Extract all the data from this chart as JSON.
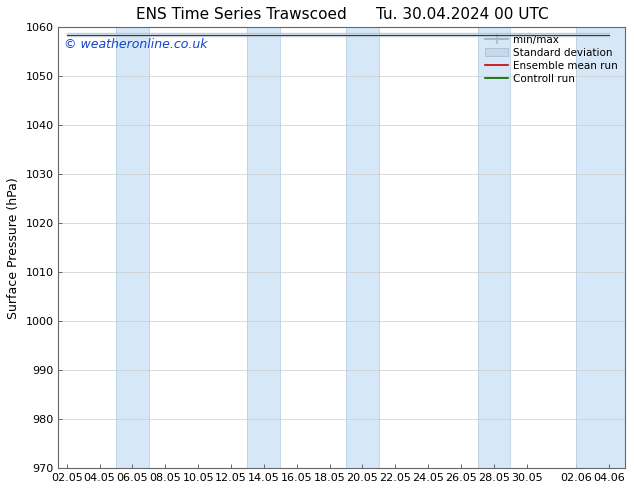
{
  "title_left": "ENS Time Series Trawscoed",
  "title_right": "Tu. 30.04.2024 00 UTC",
  "ylabel": "Surface Pressure (hPa)",
  "watermark": "© weatheronline.co.uk",
  "ylim": [
    970,
    1060
  ],
  "yticks": [
    970,
    980,
    990,
    1000,
    1010,
    1020,
    1030,
    1040,
    1050,
    1060
  ],
  "xtick_labels": [
    "02.05",
    "04.05",
    "06.05",
    "08.05",
    "10.05",
    "12.05",
    "14.05",
    "16.05",
    "18.05",
    "20.05",
    "22.05",
    "24.05",
    "26.05",
    "28.05",
    "30.05",
    "02.06",
    "04.06"
  ],
  "xtick_positions": [
    0,
    2,
    4,
    6,
    8,
    10,
    12,
    14,
    16,
    18,
    20,
    22,
    24,
    26,
    28,
    31,
    33
  ],
  "xlim": [
    -0.5,
    34
  ],
  "shaded_band_color": "#d6e8f7",
  "shaded_band_edge_color": "#b8d0e8",
  "background_color": "#ffffff",
  "plot_bg_color": "#ffffff",
  "shaded_ranges": [
    [
      3,
      5
    ],
    [
      11,
      13
    ],
    [
      17,
      19
    ],
    [
      25,
      27
    ],
    [
      31,
      34
    ]
  ],
  "legend_items": [
    {
      "label": "min/max",
      "color": "#a8b8c8"
    },
    {
      "label": "Standard deviation",
      "color": "#c8d8e8"
    },
    {
      "label": "Ensemble mean run",
      "color": "#cc0000"
    },
    {
      "label": "Controll run",
      "color": "#006600"
    }
  ],
  "title_fontsize": 11,
  "axis_fontsize": 9,
  "tick_fontsize": 8,
  "watermark_fontsize": 9,
  "data_y_value": 1058.5,
  "grid_color": "#cccccc",
  "spine_color": "#666666"
}
